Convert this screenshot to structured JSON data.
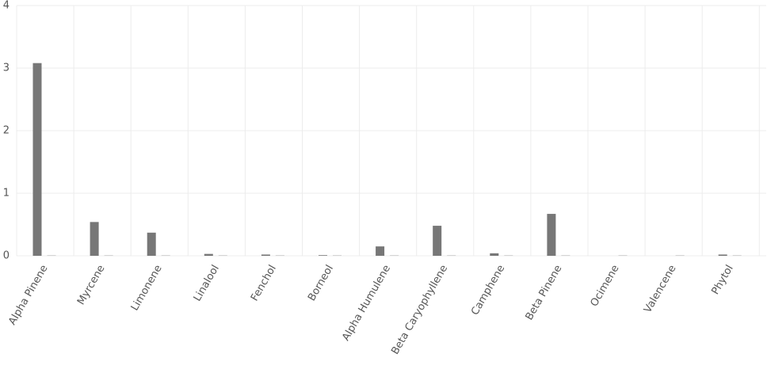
{
  "chart_data": {
    "type": "bar",
    "categories": [
      "Alpha Pinene",
      "Myrcene",
      "Limonene",
      "Linalool",
      "Fenchol",
      "Borneol",
      "Alpha Humulene",
      "Beta Caryophyllene",
      "Camphene",
      "Beta Pinene",
      "Ocimene",
      "Valencene",
      "Phytol"
    ],
    "series": [
      {
        "color": "#777777",
        "values": [
          3.08,
          0.54,
          0.37,
          0.03,
          0.02,
          0.01,
          0.15,
          0.48,
          0.04,
          0.67,
          0,
          0,
          0.02
        ]
      },
      {
        "color": "#c8c8c8",
        "values": [
          0.01,
          0.01,
          0.01,
          0.01,
          0.01,
          0.01,
          0.01,
          0.01,
          0.01,
          0.01,
          0.01,
          0.01,
          0.01
        ]
      }
    ],
    "ylim": [
      0,
      4
    ],
    "yticks": [
      0,
      1,
      2,
      3,
      4
    ],
    "grid": true
  }
}
